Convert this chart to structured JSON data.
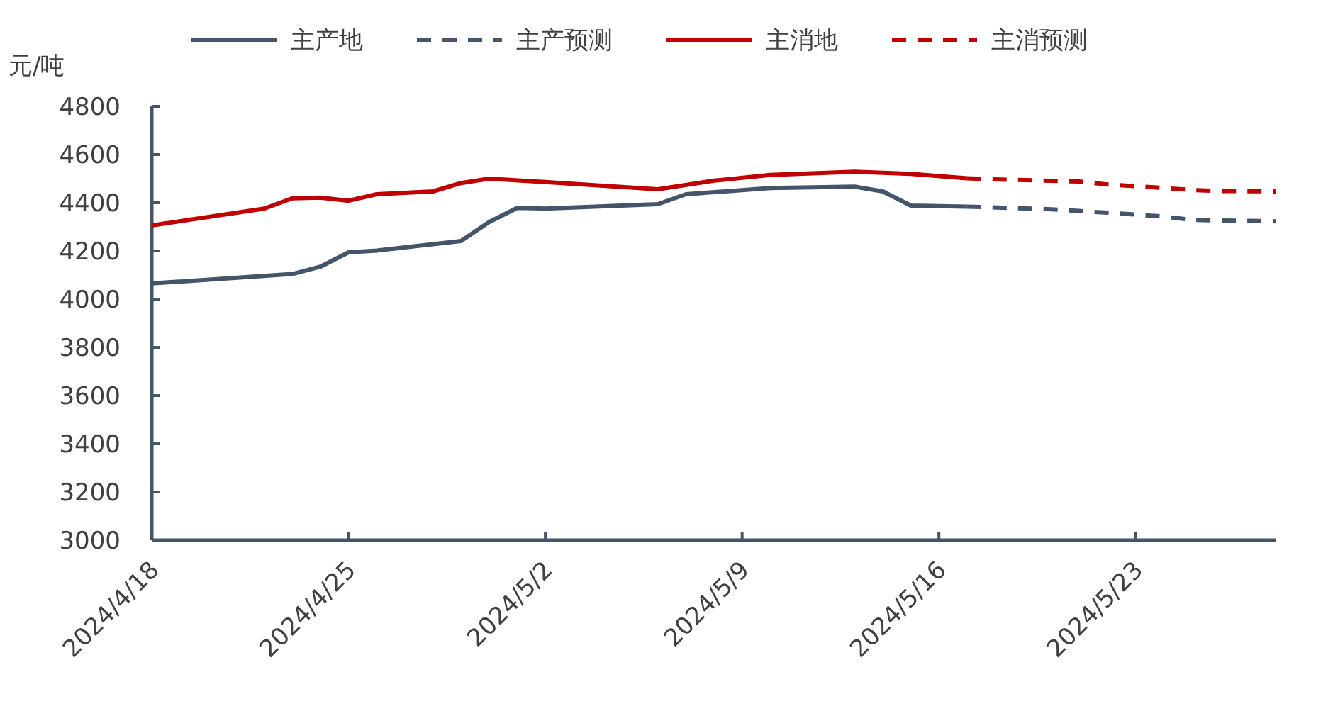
{
  "chart_data": {
    "type": "line",
    "ylabel": "元/吨",
    "legend": "top",
    "grid": false,
    "marker": "none",
    "xlim": [
      "2024-04-18",
      "2024-05-28"
    ],
    "xticks": [
      {
        "value": "2024-04-18",
        "label": "2024/4/18"
      },
      {
        "value": "2024-04-25",
        "label": "2024/4/25"
      },
      {
        "value": "2024-05-02",
        "label": "2024/5/2"
      },
      {
        "value": "2024-05-09",
        "label": "2024/5/9"
      },
      {
        "value": "2024-05-16",
        "label": "2024/5/16"
      },
      {
        "value": "2024-05-23",
        "label": "2024/5/23"
      }
    ],
    "ylim": [
      3000,
      4800
    ],
    "yticks": [
      3000,
      3200,
      3400,
      3600,
      3800,
      4000,
      4200,
      4400,
      4600,
      4800
    ],
    "series": [
      {
        "name": "主产地",
        "color": "#44546a",
        "line_style": "solid",
        "x": [
          "2024-04-18",
          "2024-04-23",
          "2024-04-24",
          "2024-04-25",
          "2024-04-26",
          "2024-04-29",
          "2024-04-30",
          "2024-05-01",
          "2024-05-02",
          "2024-05-06",
          "2024-05-07",
          "2024-05-10",
          "2024-05-13",
          "2024-05-14",
          "2024-05-15",
          "2024-05-17"
        ],
        "values": [
          4065,
          4104,
          4135,
          4194,
          4202,
          4241,
          4320,
          4379,
          4376,
          4394,
          4435,
          4461,
          4467,
          4447,
          4388,
          4384
        ]
      },
      {
        "name": "主产预测",
        "color": "#44546a",
        "line_style": "dashed",
        "x": [
          "2024-05-17",
          "2024-05-20",
          "2024-05-22",
          "2024-05-24",
          "2024-05-25",
          "2024-05-28"
        ],
        "values": [
          4384,
          4373,
          4359,
          4343,
          4329,
          4323
        ]
      },
      {
        "name": "主消地",
        "color": "#c00000",
        "line_style": "solid",
        "x": [
          "2024-04-18",
          "2024-04-22",
          "2024-04-23",
          "2024-04-24",
          "2024-04-25",
          "2024-04-26",
          "2024-04-28",
          "2024-04-29",
          "2024-04-30",
          "2024-05-02",
          "2024-05-06",
          "2024-05-08",
          "2024-05-10",
          "2024-05-13",
          "2024-05-15",
          "2024-05-17"
        ],
        "values": [
          4306,
          4376,
          4418,
          4421,
          4408,
          4435,
          4447,
          4482,
          4500,
          4486,
          4456,
          4492,
          4515,
          4529,
          4520,
          4502
        ]
      },
      {
        "name": "主消预测",
        "color": "#c00000",
        "line_style": "dashed",
        "x": [
          "2024-05-17",
          "2024-05-18",
          "2024-05-20",
          "2024-05-21",
          "2024-05-22",
          "2024-05-24",
          "2024-05-25",
          "2024-05-26",
          "2024-05-28"
        ],
        "values": [
          4502,
          4497,
          4491,
          4488,
          4476,
          4461,
          4453,
          4449,
          4447
        ]
      }
    ]
  }
}
